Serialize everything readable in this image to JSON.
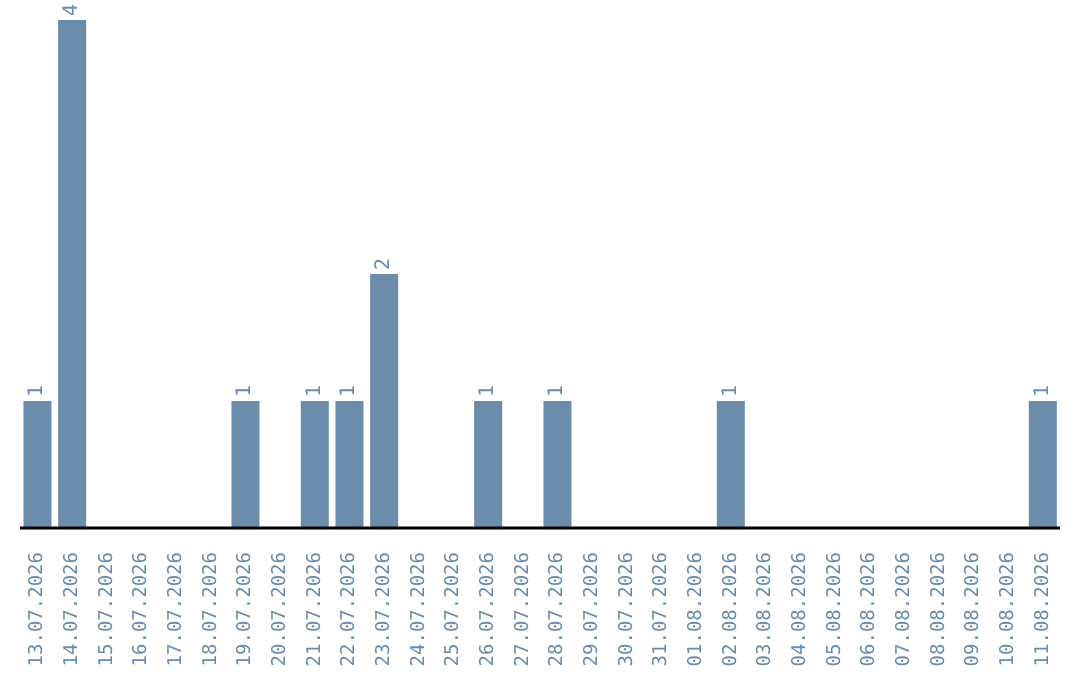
{
  "chart_data": {
    "type": "bar",
    "categories": [
      "13.07.2026",
      "14.07.2026",
      "15.07.2026",
      "16.07.2026",
      "17.07.2026",
      "18.07.2026",
      "19.07.2026",
      "20.07.2026",
      "21.07.2026",
      "22.07.2026",
      "23.07.2026",
      "24.07.2026",
      "25.07.2026",
      "26.07.2026",
      "27.07.2026",
      "28.07.2026",
      "29.07.2026",
      "30.07.2026",
      "31.07.2026",
      "01.08.2026",
      "02.08.2026",
      "03.08.2026",
      "04.08.2026",
      "05.08.2026",
      "06.08.2026",
      "07.08.2026",
      "08.08.2026",
      "09.08.2026",
      "10.08.2026",
      "11.08.2026"
    ],
    "values": [
      1,
      4,
      0,
      0,
      0,
      0,
      1,
      0,
      1,
      1,
      2,
      0,
      0,
      1,
      0,
      1,
      0,
      0,
      0,
      0,
      1,
      0,
      0,
      0,
      0,
      0,
      0,
      0,
      0,
      1
    ],
    "value_labels": [
      "1",
      "4",
      null,
      null,
      null,
      null,
      "1",
      null,
      "1",
      "1",
      "2",
      null,
      null,
      "1",
      null,
      "1",
      null,
      null,
      null,
      null,
      "1",
      null,
      null,
      null,
      null,
      null,
      null,
      null,
      null,
      "1"
    ],
    "color": "#6b8cab",
    "grid": false,
    "legend": false
  }
}
